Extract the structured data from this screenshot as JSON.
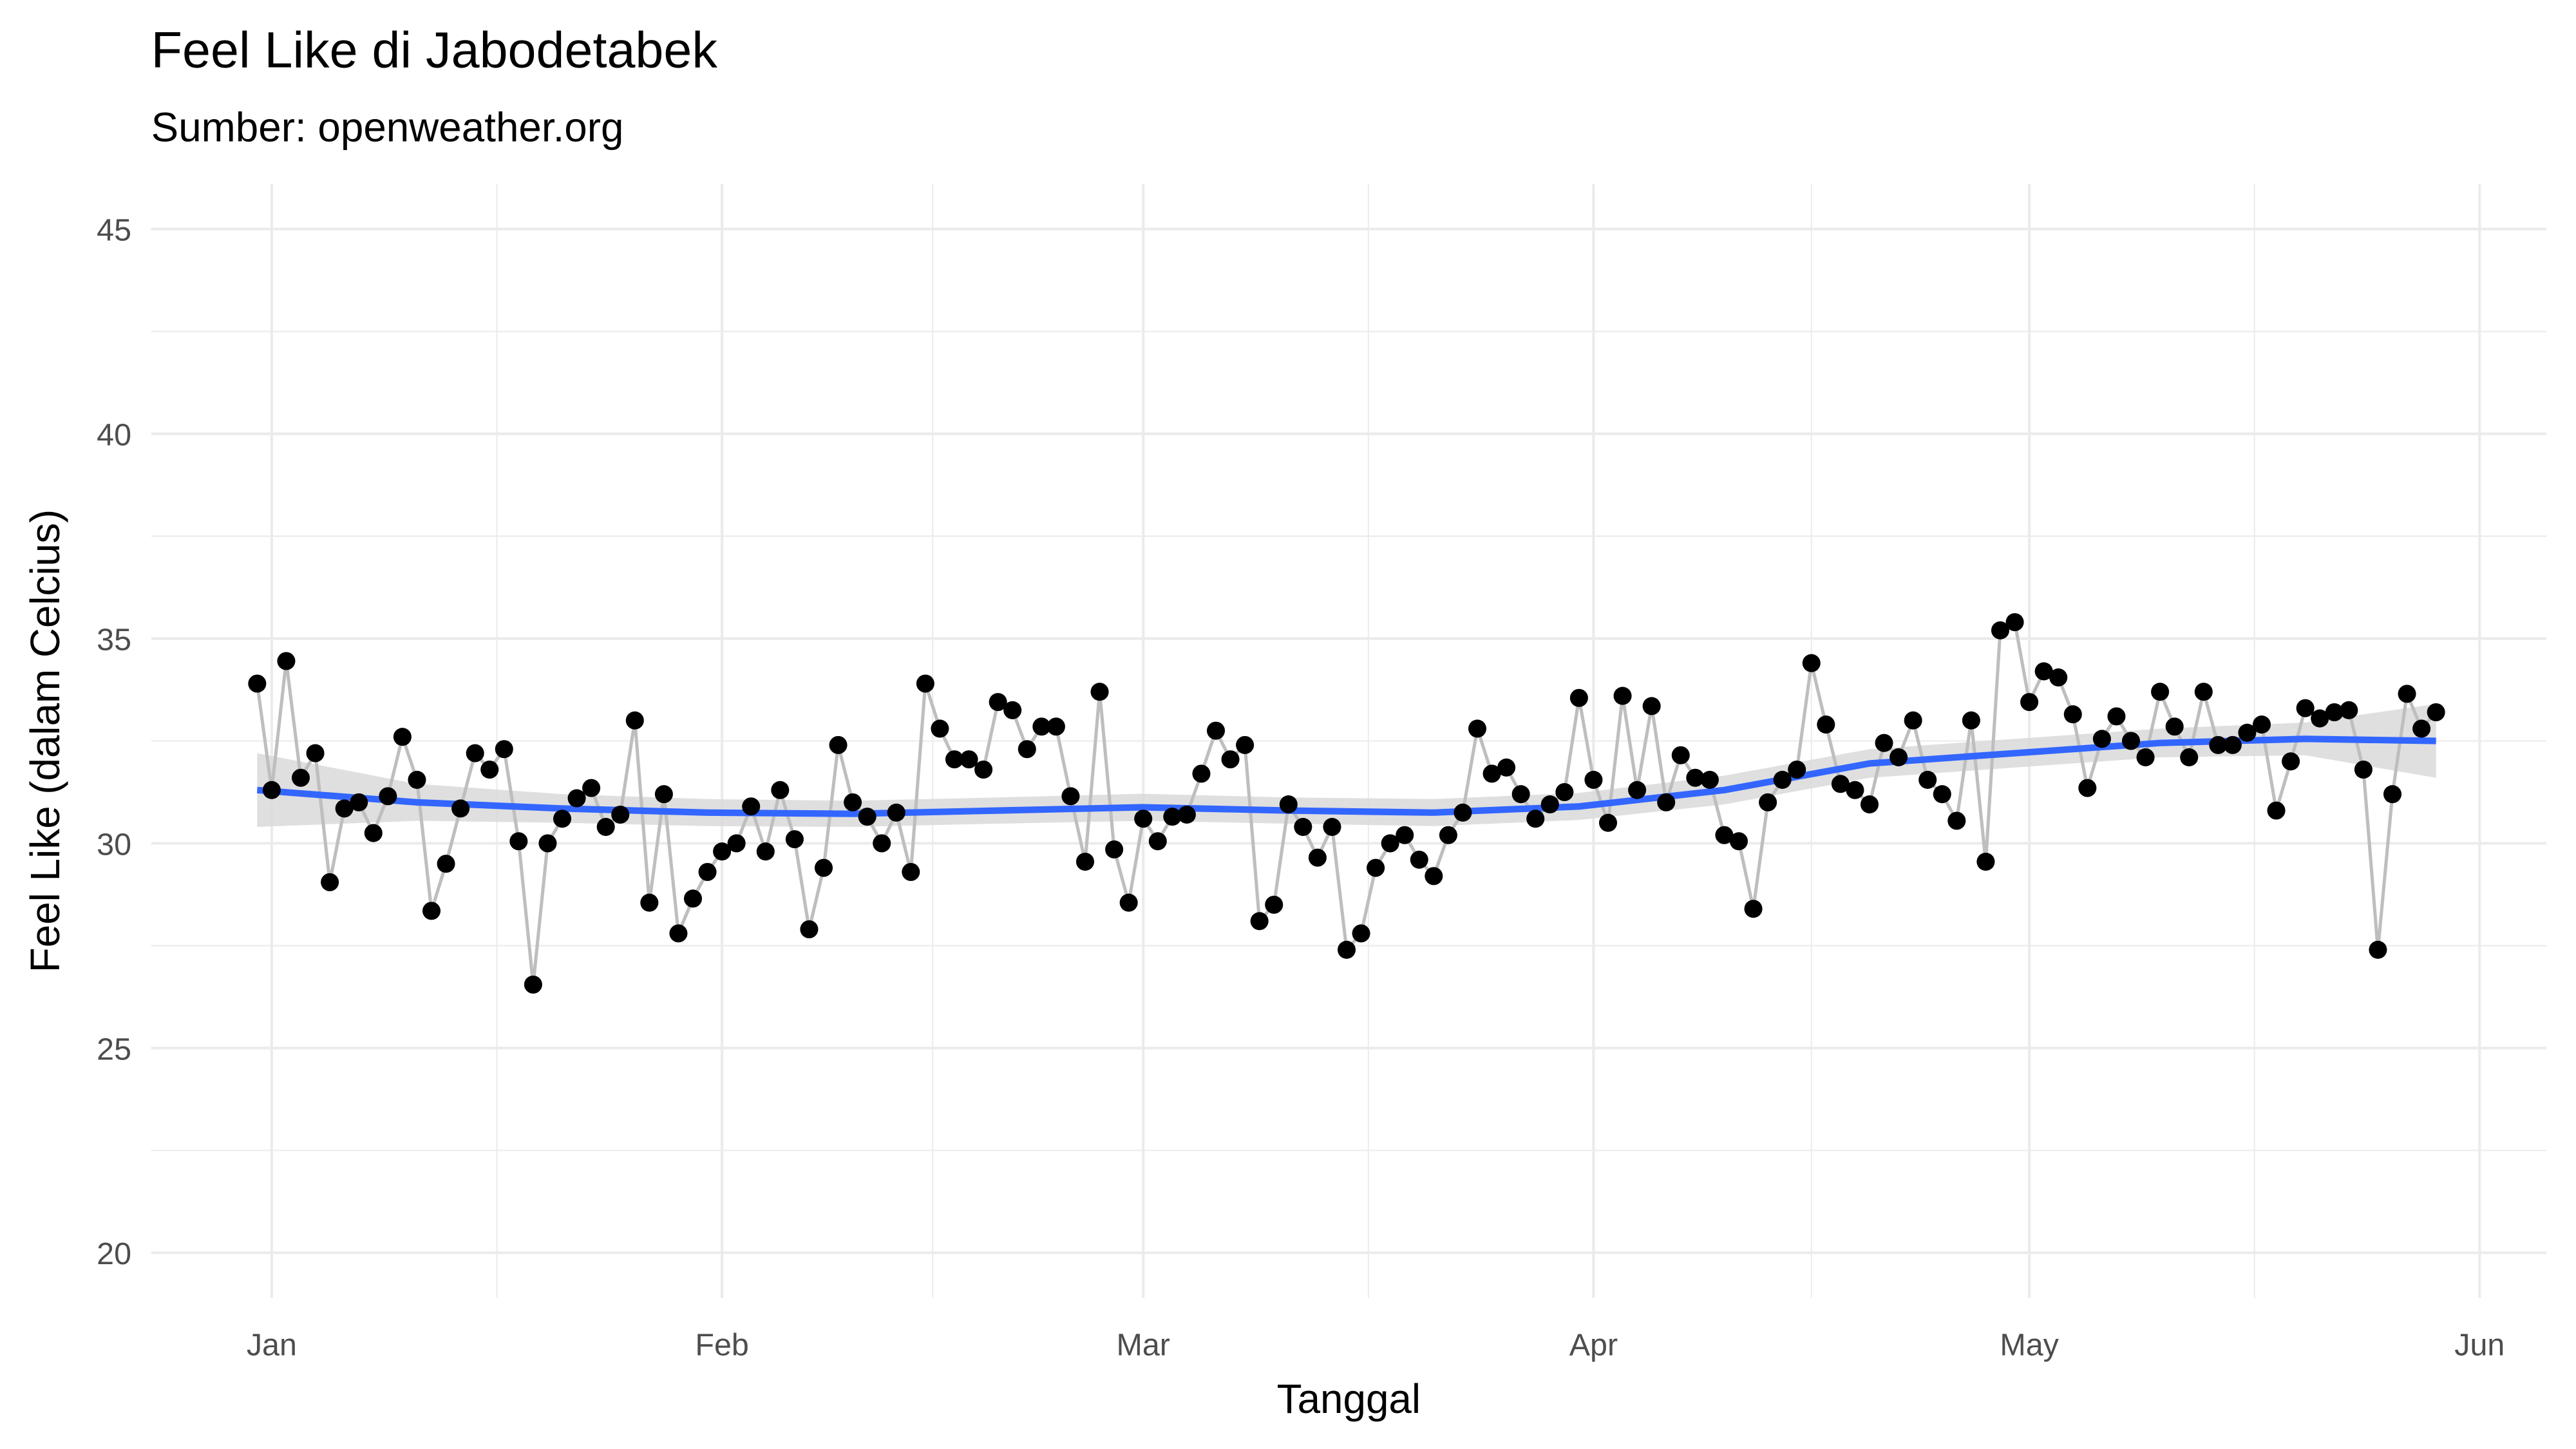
{
  "chart_data": {
    "type": "line",
    "title": "Feel Like di Jabodetabek",
    "subtitle": "Sumber: openweather.org",
    "x_label": "Tanggal",
    "y_label": "Feel Like (dalam Celcius)",
    "x": [
      -1,
      0,
      1,
      2,
      3,
      4,
      5,
      6,
      7,
      8,
      9,
      10,
      11,
      12,
      13,
      14,
      15,
      16,
      17,
      18,
      19,
      20,
      21,
      22,
      23,
      24,
      25,
      26,
      27,
      28,
      29,
      30,
      31,
      32,
      33,
      34,
      35,
      36,
      37,
      38,
      39,
      40,
      41,
      42,
      43,
      44,
      45,
      46,
      47,
      48,
      49,
      50,
      51,
      52,
      53,
      54,
      55,
      56,
      57,
      58,
      59,
      60,
      61,
      62,
      63,
      64,
      65,
      66,
      67,
      68,
      69,
      70,
      71,
      72,
      73,
      74,
      75,
      76,
      77,
      78,
      79,
      80,
      81,
      82,
      83,
      84,
      85,
      86,
      87,
      88,
      89,
      90,
      91,
      92,
      93,
      94,
      95,
      96,
      97,
      98,
      99,
      100,
      101,
      102,
      103,
      104,
      105,
      106,
      107,
      108,
      109,
      110,
      111,
      112,
      113,
      114,
      115,
      116,
      117,
      118,
      119,
      120,
      121,
      122,
      123,
      124,
      125,
      126,
      127,
      128,
      129,
      130,
      131,
      132,
      133,
      134,
      135,
      136,
      137,
      138,
      139,
      140,
      141,
      142,
      143,
      144,
      145,
      146,
      147,
      148,
      149
    ],
    "values": [
      33.9,
      31.3,
      34.45,
      31.6,
      32.2,
      29.05,
      30.85,
      31.0,
      30.25,
      31.15,
      32.6,
      31.55,
      28.35,
      29.5,
      30.85,
      32.2,
      31.8,
      32.3,
      30.05,
      26.55,
      30.0,
      30.6,
      31.1,
      31.35,
      30.4,
      30.7,
      33.0,
      28.55,
      31.2,
      27.8,
      28.65,
      29.3,
      29.8,
      30.0,
      30.9,
      29.8,
      31.3,
      30.1,
      27.9,
      29.4,
      32.4,
      31.0,
      30.65,
      30.0,
      30.75,
      29.3,
      33.9,
      32.8,
      32.05,
      32.05,
      31.8,
      33.45,
      33.25,
      32.3,
      32.85,
      32.85,
      31.15,
      29.55,
      33.7,
      29.85,
      28.55,
      30.6,
      30.05,
      30.65,
      30.7,
      31.7,
      32.75,
      32.05,
      32.4,
      28.1,
      28.5,
      30.95,
      30.4,
      29.65,
      30.4,
      27.4,
      27.8,
      29.4,
      30.0,
      30.2,
      29.6,
      29.2,
      30.2,
      30.75,
      32.8,
      31.7,
      31.85,
      31.2,
      30.6,
      30.95,
      31.25,
      33.55,
      31.55,
      30.5,
      33.6,
      31.3,
      33.35,
      31.0,
      32.15,
      31.6,
      31.55,
      30.2,
      30.05,
      28.4,
      31.0,
      31.55,
      31.8,
      34.4,
      32.9,
      31.45,
      31.3,
      30.95,
      32.45,
      32.1,
      33.0,
      31.55,
      31.2,
      30.55,
      33.0,
      29.55,
      35.2,
      35.4,
      33.45,
      34.2,
      34.05,
      33.15,
      31.35,
      32.55,
      33.1,
      32.5,
      32.1,
      33.7,
      32.85,
      32.1,
      33.7,
      32.4,
      32.4,
      32.7,
      32.9,
      30.8,
      32.0,
      33.3,
      33.05,
      33.2,
      33.25,
      31.8,
      27.4,
      31.2,
      33.65,
      32.8,
      33.2
    ],
    "point_color": "#000000",
    "line_color": "#bebebe",
    "smooth": {
      "color": "#3366ff",
      "band_color": "#d9d9d9",
      "x": [
        -1,
        10,
        20,
        30,
        40,
        50,
        60,
        70,
        80,
        90,
        100,
        110,
        120,
        130,
        140,
        149
      ],
      "values": [
        31.3,
        31.0,
        30.85,
        30.75,
        30.72,
        30.8,
        30.88,
        30.8,
        30.75,
        30.9,
        31.3,
        31.95,
        32.2,
        32.45,
        32.55,
        32.5
      ],
      "lower": [
        30.4,
        30.55,
        30.5,
        30.42,
        30.4,
        30.48,
        30.55,
        30.48,
        30.42,
        30.57,
        30.95,
        31.6,
        31.85,
        32.1,
        32.15,
        31.6
      ],
      "upper": [
        32.2,
        31.45,
        31.2,
        31.08,
        31.04,
        31.12,
        31.21,
        31.12,
        31.08,
        31.23,
        31.65,
        32.3,
        32.55,
        32.8,
        32.95,
        33.4
      ]
    },
    "xlim": [
      -8.3,
      156.6
    ],
    "xticks": [
      {
        "value": 0,
        "label": "Jan"
      },
      {
        "value": 31,
        "label": "Feb"
      },
      {
        "value": 60,
        "label": "Mar"
      },
      {
        "value": 91,
        "label": "Apr"
      },
      {
        "value": 121,
        "label": "May"
      },
      {
        "value": 152,
        "label": "Jun"
      }
    ],
    "ylim": [
      18.9,
      46.1
    ],
    "yticks": [
      20,
      25,
      30,
      35,
      40,
      45
    ],
    "grid": true
  }
}
